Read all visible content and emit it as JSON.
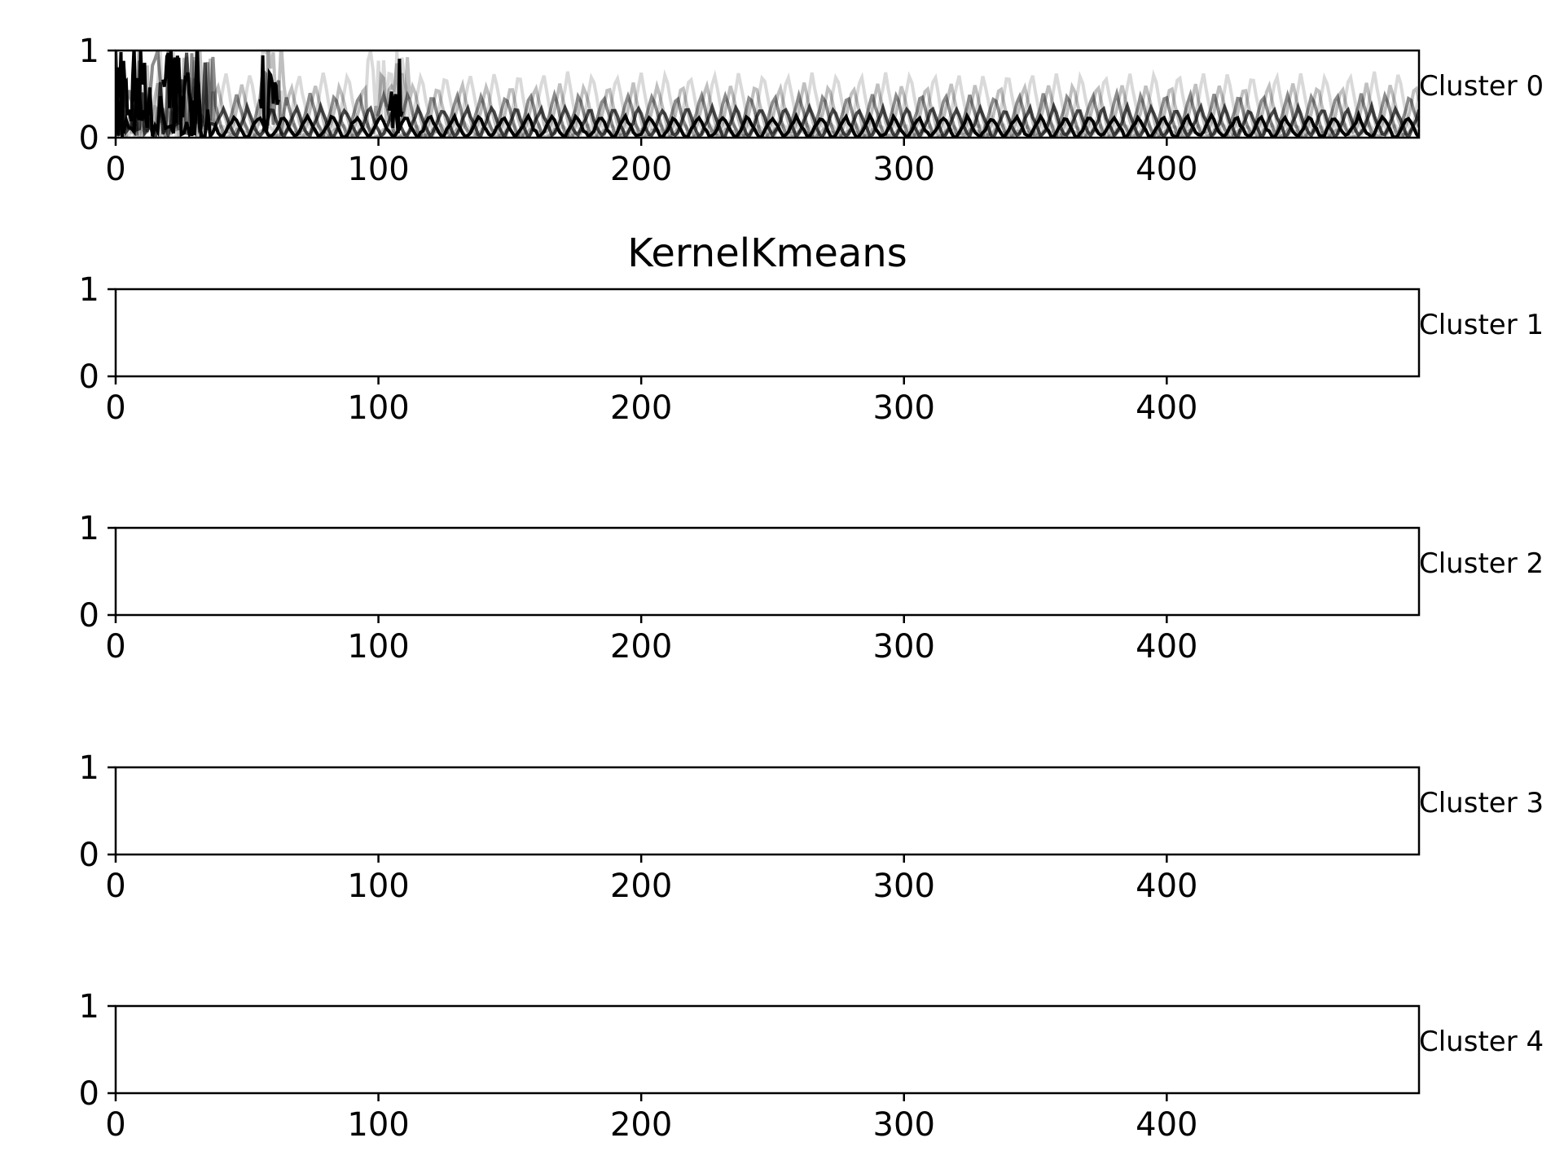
{
  "chart_data": {
    "type": "line",
    "title": "KernelKmeans",
    "panels": [
      {
        "label": "Cluster 0",
        "xlim": [
          0,
          496
        ],
        "ylim": [
          0,
          1
        ],
        "xticks": [
          "0",
          "100",
          "200",
          "300",
          "400"
        ],
        "yticks": [
          "0",
          "1"
        ],
        "has_series": true
      },
      {
        "label": "Cluster 1",
        "xlim": [
          0,
          496
        ],
        "ylim": [
          0,
          1
        ],
        "xticks": [
          "0",
          "100",
          "200",
          "300",
          "400"
        ],
        "yticks": [
          "0",
          "1"
        ],
        "has_series": false
      },
      {
        "label": "Cluster 2",
        "xlim": [
          0,
          496
        ],
        "ylim": [
          0,
          1
        ],
        "xticks": [
          "0",
          "100",
          "200",
          "300",
          "400"
        ],
        "yticks": [
          "0",
          "1"
        ],
        "has_series": false
      },
      {
        "label": "Cluster 3",
        "xlim": [
          0,
          496
        ],
        "ylim": [
          0,
          1
        ],
        "xticks": [
          "0",
          "100",
          "200",
          "300",
          "400"
        ],
        "yticks": [
          "0",
          "1"
        ],
        "has_series": false
      },
      {
        "label": "Cluster 4",
        "xlim": [
          0,
          496
        ],
        "ylim": [
          0,
          1
        ],
        "xticks": [
          "0",
          "100",
          "200",
          "300",
          "400"
        ],
        "yticks": [
          "0",
          "1"
        ],
        "has_series": false
      }
    ],
    "series_color": "#000000",
    "series_opacity": [
      0.15,
      0.25,
      0.45,
      0.7,
      1.0
    ],
    "series_profiles": [
      {
        "peak": 0.75,
        "period": 9.3,
        "phase": 0,
        "trough": 0.05
      },
      {
        "peak": 0.62,
        "period": 9.3,
        "phase": 3,
        "trough": 0.03
      },
      {
        "peak": 0.5,
        "period": 9.3,
        "phase": 5,
        "trough": 0.02
      },
      {
        "peak": 0.35,
        "period": 9.3,
        "phase": 1,
        "trough": 0.01
      },
      {
        "peak": 0.25,
        "period": 9.3,
        "phase": 6,
        "trough": 0.0
      },
      {
        "peak": 0.15,
        "period": 9.3,
        "phase": 2,
        "trough": 0.0
      },
      {
        "peak": 0.1,
        "period": 9.3,
        "phase": 4,
        "trough": 0.0
      }
    ],
    "grid": false,
    "legend": "none"
  }
}
